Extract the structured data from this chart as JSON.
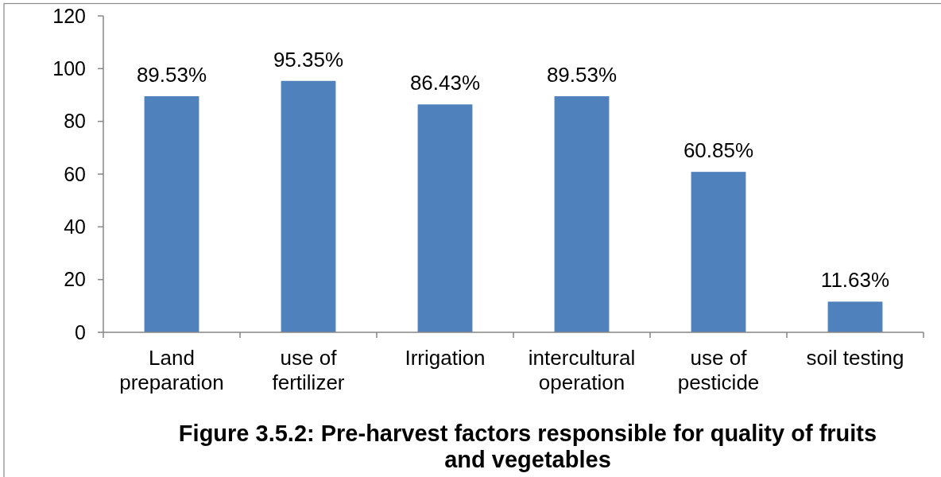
{
  "chart_data": {
    "type": "bar",
    "title": "Figure 3.5.2: Pre-harvest factors responsible for quality of fruits and vegetables",
    "categories": [
      "Land preparation",
      "use of fertilizer",
      "Irrigation",
      "intercultural operation",
      "use of pesticide",
      "soil testing"
    ],
    "values": [
      89.53,
      95.35,
      86.43,
      89.53,
      60.85,
      11.63
    ],
    "value_labels": [
      "89.53%",
      "95.35%",
      "86.43%",
      "89.53%",
      "60.85%",
      "11.63%"
    ],
    "color": "#4f81bd",
    "ylim": [
      0,
      120
    ],
    "yticks": [
      0,
      20,
      40,
      60,
      80,
      100,
      120
    ]
  }
}
